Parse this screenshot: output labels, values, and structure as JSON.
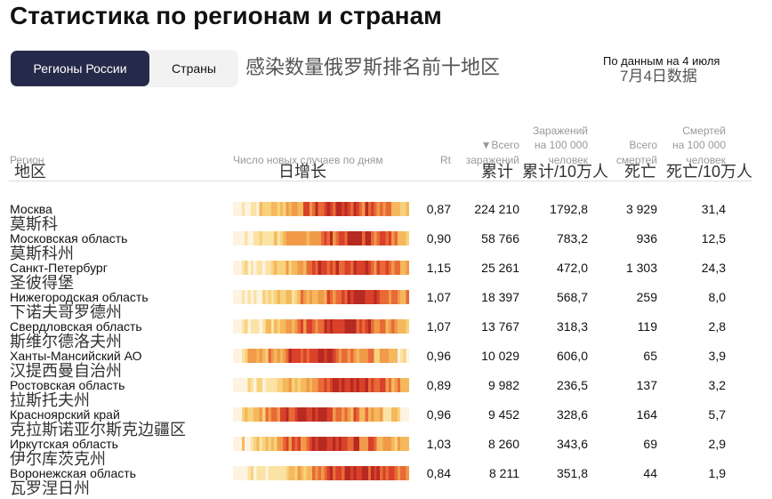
{
  "header": {
    "title": "Статистика по регионам и странам",
    "tabs": [
      "Регионы России",
      "Страны"
    ],
    "annotation": "感染数量俄罗斯排名前十地区",
    "date_note": "По данным на 4 июля",
    "date_note_zh": "7月4日数据"
  },
  "table": {
    "columns": [
      {
        "label": "Регион",
        "zh": "地区"
      },
      {
        "label": "Число новых случаев по дням",
        "zh": "日增长"
      },
      {
        "label": "Rt"
      },
      {
        "label": "▼Всего\nзаражений",
        "zh": "累计"
      },
      {
        "label": "Заражений\nна 100 000\nчеловек",
        "zh": "累计/10万人"
      },
      {
        "label": "Всего\nсмертей",
        "zh": "死亡"
      },
      {
        "label": "Смертей\nна 100 000\nчеловек",
        "zh": "死亡/10万人"
      }
    ],
    "rows": [
      [
        "Москва",
        "莫斯科",
        "0,87",
        "224 210",
        "1792,8",
        "3 929",
        "31,4"
      ],
      [
        "Московская область",
        "莫斯科州",
        "0,90",
        "58 766",
        "783,2",
        "936",
        "12,5"
      ],
      [
        "Санкт-Петербург",
        "圣彼得堡",
        "1,15",
        "25 261",
        "472,0",
        "1 303",
        "24,3"
      ],
      [
        "Нижегородская область",
        "下诺夫哥罗德州",
        "1,07",
        "18 397",
        "568,7",
        "259",
        "8,0"
      ],
      [
        "Свердловская область",
        "斯维尔德洛夫州",
        "1,07",
        "13 767",
        "318,3",
        "119",
        "2,8"
      ],
      [
        "Ханты-Мансийский АО",
        "汉提西曼自治州",
        "0,96",
        "10 029",
        "606,0",
        "65",
        "3,9"
      ],
      [
        "Ростовская область",
        "拉斯托夫州",
        "0,89",
        "9 982",
        "236,5",
        "137",
        "3,2"
      ],
      [
        "Красноярский край",
        "克拉斯诺亚尔斯克边疆区",
        "0,96",
        "9 452",
        "328,6",
        "164",
        "5,7"
      ],
      [
        "Иркутская область",
        "伊尔库茨克州",
        "1,03",
        "8 260",
        "343,6",
        "69",
        "2,9"
      ],
      [
        "Воронежская область",
        "瓦罗涅日州",
        "0,84",
        "8 211",
        "351,8",
        "44",
        "1,9"
      ]
    ]
  }
}
